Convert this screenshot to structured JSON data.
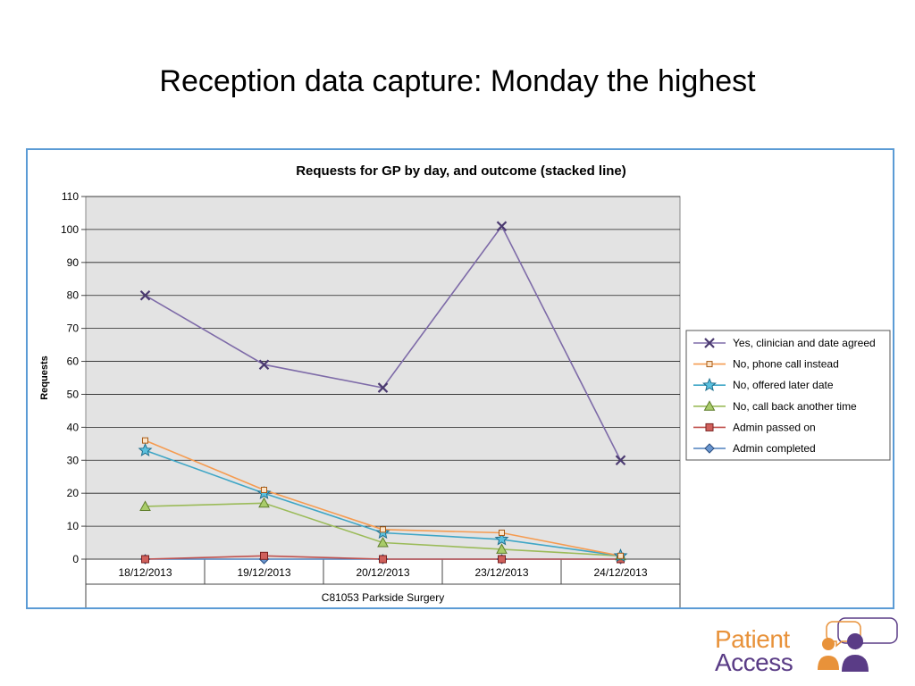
{
  "slide": {
    "title": "Reception data capture:  Monday the highest"
  },
  "logo": {
    "line1": "Patient",
    "line2": "Access",
    "colors": {
      "orange": "#E8923A",
      "purple": "#5A3C86"
    }
  },
  "chart_data": {
    "type": "line",
    "title": "Requests for GP by day, and outcome (stacked line)",
    "ylabel": "Requests",
    "xlabel": "C81053 Parkside Surgery",
    "ylim": [
      0,
      110
    ],
    "yticks": [
      0,
      10,
      20,
      30,
      40,
      50,
      60,
      70,
      80,
      90,
      100,
      110
    ],
    "grid": true,
    "legend_position": "right",
    "categories": [
      "18/12/2013",
      "19/12/2013",
      "20/12/2013",
      "23/12/2013",
      "24/12/2013"
    ],
    "series": [
      {
        "name": "Yes, clinician and date agreed",
        "values": [
          80,
          59,
          52,
          101,
          30
        ],
        "color": "#7E6BA8",
        "marker": "x"
      },
      {
        "name": "No, phone call instead",
        "values": [
          36,
          21,
          9,
          8,
          1
        ],
        "color": "#F59B50",
        "marker": "square-small"
      },
      {
        "name": "No, offered later date",
        "values": [
          33,
          20,
          8,
          6,
          1
        ],
        "color": "#3FA6C6",
        "marker": "star"
      },
      {
        "name": "No, call back another time",
        "values": [
          16,
          17,
          5,
          3,
          1
        ],
        "color": "#9BBB59",
        "marker": "triangle"
      },
      {
        "name": "Admin passed on",
        "values": [
          0,
          1,
          0,
          0,
          0
        ],
        "color": "#C0504D",
        "marker": "square"
      },
      {
        "name": "Admin completed",
        "values": [
          0,
          0,
          0,
          0,
          0
        ],
        "color": "#4F81BD",
        "marker": "diamond"
      }
    ]
  }
}
